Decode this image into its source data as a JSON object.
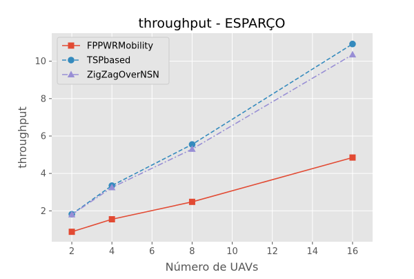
{
  "chart_data": {
    "type": "line",
    "title": "throughput - ESPARÇO",
    "xlabel": "Número de UAVs",
    "ylabel": "throughput",
    "x": [
      2,
      4,
      8,
      16
    ],
    "xlim": [
      1,
      17
    ],
    "ylim": [
      0.35,
      11.5
    ],
    "xticks": [
      2,
      4,
      6,
      8,
      10,
      12,
      14,
      16
    ],
    "yticks": [
      2,
      4,
      6,
      8,
      10
    ],
    "grid": true,
    "legend_position": "top-left",
    "series": [
      {
        "name": "FPPWRMobility",
        "values": [
          0.88,
          1.55,
          2.48,
          4.85
        ],
        "color": "#e24a33",
        "marker": "square",
        "linestyle": "solid"
      },
      {
        "name": "TSPbased",
        "values": [
          1.82,
          3.35,
          5.55,
          10.92
        ],
        "color": "#348abd",
        "marker": "circle",
        "linestyle": "dashed"
      },
      {
        "name": "ZigZagOverNSN",
        "values": [
          1.8,
          3.25,
          5.3,
          10.35
        ],
        "color": "#988ed5",
        "marker": "triangle",
        "linestyle": "dashdot"
      }
    ]
  }
}
